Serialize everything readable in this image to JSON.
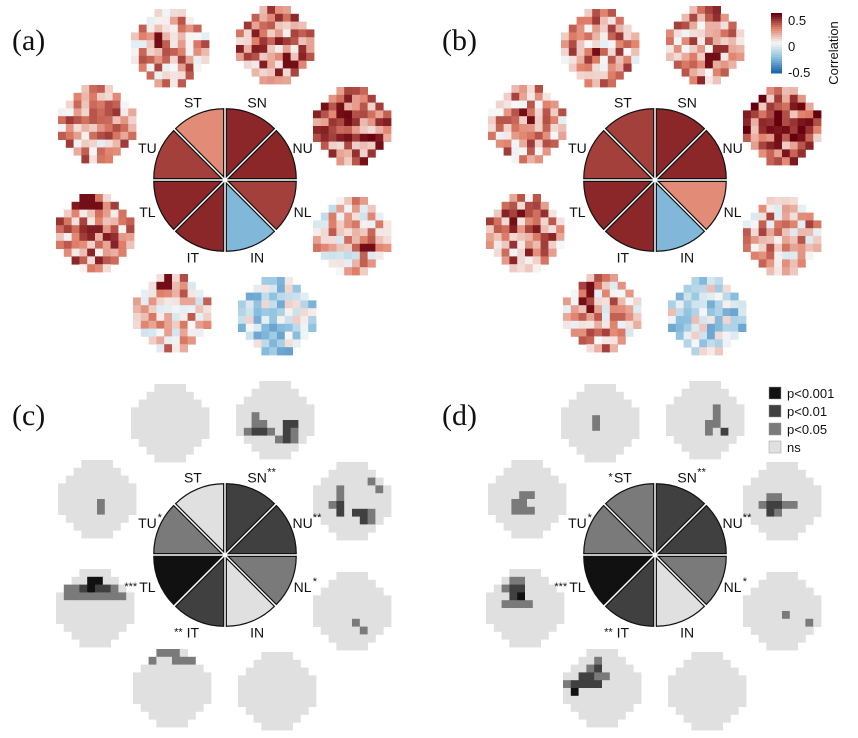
{
  "colors": {
    "corr_pos": "#67000d",
    "corr_mid": "#f7f7f7",
    "corr_neg": "#2166ac",
    "p001": "#111111",
    "p01": "#404040",
    "p05": "#7a7a7a",
    "ns": "#e0e0e0"
  },
  "colorbar": {
    "title": "Correlation",
    "ticks": [
      "0.5",
      "0",
      "-0.5"
    ]
  },
  "pvalue_legend": {
    "entries": [
      {
        "label": "p<0.001",
        "level": "p001"
      },
      {
        "label": "p<0.01",
        "level": "p01"
      },
      {
        "label": "p<0.05",
        "level": "p05"
      },
      {
        "label": "ns",
        "level": "ns"
      }
    ]
  },
  "sectors": [
    "ST",
    "SN",
    "NU",
    "NL",
    "IN",
    "IT",
    "TL",
    "TU"
  ],
  "panels": [
    {
      "label": "(a)",
      "type": "correlation",
      "sector_labels": [
        "ST",
        "SN",
        "NU",
        "NL",
        "IN",
        "IT",
        "TL",
        "TU"
      ],
      "sector_stars": [
        "",
        "",
        "",
        "",
        "",
        "",
        "",
        ""
      ],
      "sector_values": [
        0.45,
        0.85,
        0.85,
        0.75,
        -0.55,
        0.85,
        0.85,
        0.75
      ]
    },
    {
      "label": "(b)",
      "type": "correlation",
      "sector_labels": [
        "ST",
        "SN",
        "NU",
        "NL",
        "IN",
        "IT",
        "TL",
        "TU"
      ],
      "sector_stars": [
        "",
        "",
        "",
        "",
        "",
        "",
        "",
        ""
      ],
      "sector_values": [
        0.75,
        0.85,
        0.85,
        0.45,
        -0.55,
        0.85,
        0.85,
        0.75
      ]
    },
    {
      "label": "(c)",
      "type": "pvalue",
      "sector_labels": [
        "ST",
        "SN",
        "NU",
        "NL",
        "IN",
        "IT",
        "TL",
        "TU"
      ],
      "sector_stars": [
        "",
        "**",
        "**",
        "*",
        "",
        "**",
        "***",
        "*"
      ],
      "sector_levels": [
        "ns",
        "p01",
        "p01",
        "p05",
        "ns",
        "p01",
        "p001",
        "p05"
      ]
    },
    {
      "label": "(d)",
      "type": "pvalue",
      "sector_labels": [
        "ST",
        "SN",
        "NU",
        "NL",
        "IN",
        "IT",
        "TL",
        "TU"
      ],
      "sector_stars": [
        "*",
        "**",
        "**",
        "*",
        "",
        "**",
        "***",
        "*"
      ],
      "sector_levels": [
        "p05",
        "p01",
        "p01",
        "p05",
        "ns",
        "p01",
        "p001",
        "p05"
      ]
    }
  ],
  "heatmaps": {
    "a": [
      [
        0,
        0,
        0,
        0,
        0,
        0,
        2,
        2,
        2,
        1,
        0,
        0,
        0,
        0,
        2,
        1,
        2,
        1,
        1,
        2,
        3,
        1,
        1,
        2,
        3,
        1,
        2,
        1,
        1,
        2,
        2,
        2,
        1,
        1,
        1,
        1,
        0,
        0,
        1,
        1,
        2,
        1,
        0,
        0,
        0,
        0,
        0,
        0,
        1,
        1,
        0,
        0,
        0,
        0
      ],
      [
        0,
        0,
        0,
        0,
        0,
        0,
        1,
        2,
        3,
        1,
        0,
        0,
        0,
        0,
        2,
        3,
        1,
        1,
        2,
        2,
        3,
        1,
        2,
        2,
        3,
        2,
        3,
        4,
        3,
        2,
        2,
        3,
        4,
        3,
        4,
        3,
        1,
        2,
        3,
        4,
        4,
        3,
        0,
        0,
        0,
        1,
        2,
        3,
        1,
        2,
        0,
        0,
        0,
        0
      ],
      [
        0,
        0,
        0,
        0,
        0,
        0,
        2,
        3,
        3,
        3,
        0,
        0,
        0,
        0,
        3,
        3,
        2,
        1,
        2,
        4,
        1,
        3,
        3,
        4,
        3,
        3,
        4,
        4,
        3,
        2,
        2,
        1,
        2,
        3,
        1,
        2,
        1,
        1,
        3,
        3,
        4,
        2,
        0,
        0,
        0,
        2,
        4,
        2,
        1,
        2,
        0,
        0,
        0,
        0
      ],
      [
        0,
        0,
        0,
        0,
        0,
        0,
        1,
        1,
        2,
        2,
        0,
        0,
        0,
        0,
        2,
        2,
        1,
        1,
        2,
        1,
        2,
        2,
        1,
        2,
        1,
        1,
        3,
        1,
        2,
        1,
        2,
        1,
        1,
        1,
        3,
        4,
        1,
        2,
        1,
        4,
        3,
        4,
        0,
        0,
        0,
        2,
        4,
        3,
        4,
        4,
        0,
        0,
        0,
        0
      ],
      [
        0,
        0,
        0,
        0,
        0,
        0,
        1,
        2,
        1,
        1,
        0,
        0,
        0,
        0,
        1,
        1,
        1,
        2,
        1,
        2,
        1,
        1,
        1,
        2,
        1,
        2,
        3,
        1,
        1,
        1,
        1,
        2,
        1,
        2,
        3,
        2,
        1,
        1,
        1,
        3,
        3,
        1,
        0,
        0,
        0,
        2,
        1,
        1,
        1,
        1,
        0,
        0,
        0,
        0
      ],
      [
        0,
        0,
        0,
        0,
        0,
        0,
        1,
        1,
        1,
        1,
        0,
        0,
        0,
        0,
        1,
        1,
        1,
        1,
        -1,
        1,
        1,
        -1,
        -1,
        1,
        1,
        1,
        1,
        1,
        1,
        1,
        -2,
        1,
        1,
        1,
        1,
        1,
        1,
        1,
        1,
        1,
        1,
        1,
        0,
        0,
        0,
        1,
        1,
        1,
        1,
        1,
        0,
        0,
        0,
        0
      ],
      [
        0,
        0,
        0,
        0,
        0,
        0,
        4,
        4,
        4,
        3,
        0,
        0,
        0,
        0,
        3,
        4,
        4,
        3,
        3,
        3,
        3,
        1,
        1,
        2,
        1,
        3,
        1,
        1,
        1,
        1,
        1,
        1,
        -1,
        1,
        1,
        1,
        1,
        1,
        1,
        1,
        1,
        1,
        0,
        0,
        0,
        1,
        1,
        1,
        1,
        1,
        0,
        0,
        0,
        0
      ],
      [
        0,
        0,
        0,
        0,
        0,
        0,
        1,
        -1,
        -1,
        -1,
        0,
        0,
        0,
        0,
        -1,
        -1,
        -2,
        -2,
        -1,
        -1,
        -1,
        -2,
        -2,
        -3,
        -1,
        -1,
        -1,
        -1,
        -2,
        -1,
        -1,
        -1,
        -1,
        -1,
        -1,
        -1,
        -1,
        -1,
        -1,
        -1,
        -1,
        -1,
        0,
        0,
        0,
        -1,
        -1,
        -2,
        -1,
        -1,
        0,
        0,
        0,
        0
      ]
    ]
  }
}
